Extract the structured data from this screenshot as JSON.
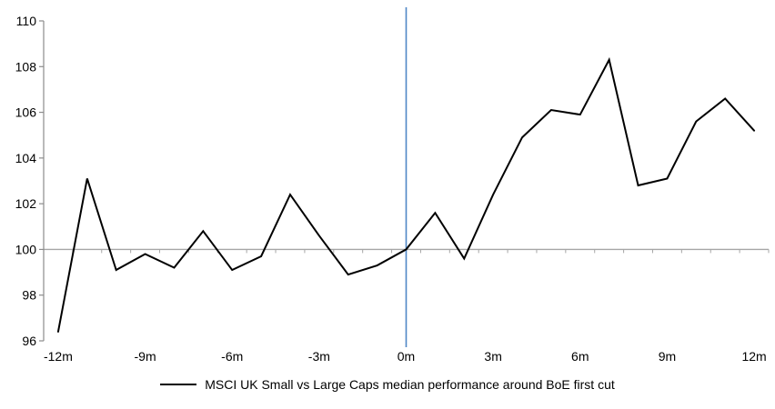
{
  "chart_data": {
    "type": "line",
    "x": [
      -12,
      -11,
      -10,
      -9,
      -8,
      -7,
      -6,
      -5,
      -4,
      -3,
      -2,
      -1,
      0,
      1,
      2,
      3,
      4,
      5,
      6,
      7,
      8,
      9,
      10,
      11,
      12
    ],
    "series": [
      {
        "name": "MSCI UK Small vs Large Caps median performance around BoE first cut",
        "color": "#000000",
        "values": [
          96.4,
          103.1,
          99.1,
          99.8,
          99.2,
          100.8,
          99.1,
          99.7,
          102.4,
          100.6,
          98.9,
          99.3,
          100.0,
          101.6,
          99.6,
          102.4,
          104.9,
          106.1,
          105.9,
          108.3,
          102.8,
          103.1,
          105.6,
          106.6,
          105.2
        ]
      }
    ],
    "ylim": [
      96,
      110
    ],
    "yticks": [
      96,
      98,
      100,
      102,
      104,
      106,
      108,
      110
    ],
    "x_tick_labels": [
      {
        "pos": -12,
        "label": "-12m"
      },
      {
        "pos": -9,
        "label": "-9m"
      },
      {
        "pos": -6,
        "label": "-6m"
      },
      {
        "pos": -3,
        "label": "-3m"
      },
      {
        "pos": 0,
        "label": "0m"
      },
      {
        "pos": 3,
        "label": "3m"
      },
      {
        "pos": 6,
        "label": "6m"
      },
      {
        "pos": 9,
        "label": "9m"
      },
      {
        "pos": 12,
        "label": "12m"
      }
    ],
    "baseline_value": 100,
    "event_line": {
      "x": 0,
      "color": "#4F86C5"
    },
    "grid": "none",
    "legend_position": "bottom",
    "colors": {
      "series": "#000000",
      "y_axis": "#8C8C8C",
      "baseline_axis": "#A6A6A6",
      "text": "#000000",
      "background": "#FFFFFF"
    }
  }
}
